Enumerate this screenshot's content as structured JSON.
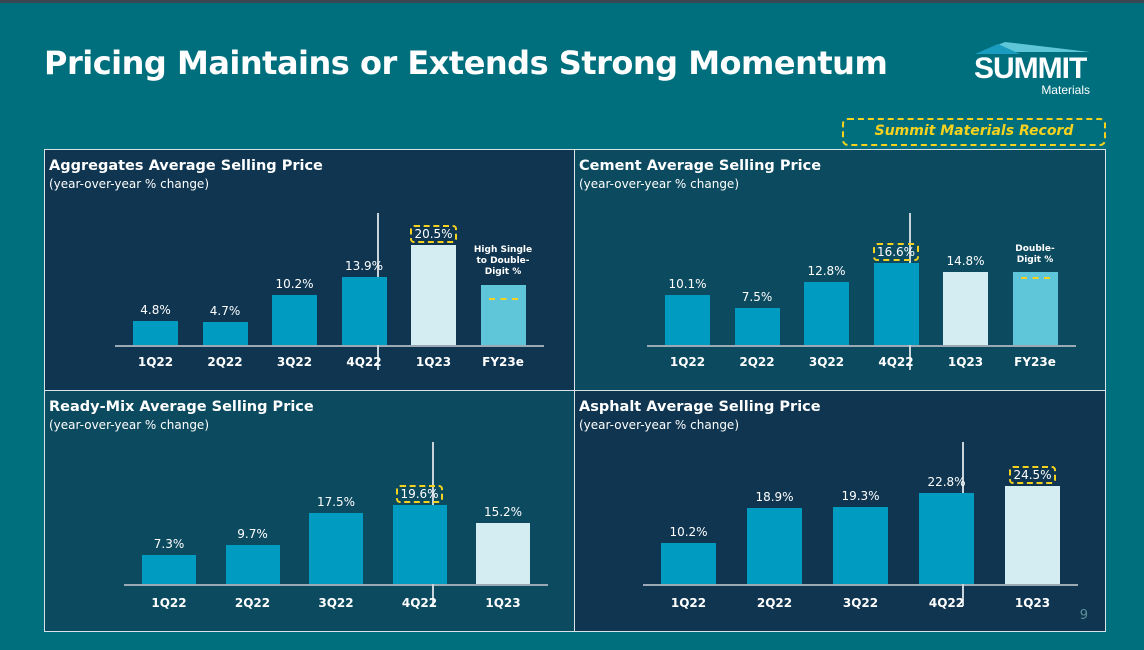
{
  "slide": {
    "title": "Pricing Maintains or Extends Strong Momentum",
    "page_number": "9",
    "record_legend": "Summit Materials Record"
  },
  "logo": {
    "brand": "SUMMIT",
    "sub": "Materials"
  },
  "colors": {
    "background": "#006f7d",
    "bar_2022": "#009bc0",
    "bar_1q23": "#d3edf3",
    "bar_fy23e": "#5ec6d8",
    "record_outline": "#f5d21e"
  },
  "chart_data": [
    {
      "type": "bar",
      "title": "Aggregates Average Selling Price",
      "subtitle": "(year-over-year % change)",
      "categories": [
        "1Q22",
        "2Q22",
        "3Q22",
        "4Q22",
        "1Q23",
        "FY23e"
      ],
      "values": [
        4.8,
        4.7,
        10.2,
        13.9,
        20.5,
        null
      ],
      "labels": [
        "4.8%",
        "4.7%",
        "10.2%",
        "13.9%",
        "20.5%",
        ""
      ],
      "record": "1Q23",
      "fy23e_note": "High Single to Double-Digit %"
    },
    {
      "type": "bar",
      "title": "Cement Average Selling Price",
      "subtitle": "(year-over-year % change)",
      "categories": [
        "1Q22",
        "2Q22",
        "3Q22",
        "4Q22",
        "1Q23",
        "FY23e"
      ],
      "values": [
        10.1,
        7.5,
        12.8,
        16.6,
        14.8,
        null
      ],
      "labels": [
        "10.1%",
        "7.5%",
        "12.8%",
        "16.6%",
        "14.8%",
        ""
      ],
      "record": "4Q22",
      "fy23e_note": "Double-Digit %"
    },
    {
      "type": "bar",
      "title": "Ready-Mix Average Selling Price",
      "subtitle": "(year-over-year % change)",
      "categories": [
        "1Q22",
        "2Q22",
        "3Q22",
        "4Q22",
        "1Q23"
      ],
      "values": [
        7.3,
        9.7,
        17.5,
        19.6,
        15.2
      ],
      "labels": [
        "7.3%",
        "9.7%",
        "17.5%",
        "19.6%",
        "15.2%"
      ],
      "record": "4Q22"
    },
    {
      "type": "bar",
      "title": "Asphalt Average Selling Price",
      "subtitle": "(year-over-year % change)",
      "categories": [
        "1Q22",
        "2Q22",
        "3Q22",
        "4Q22",
        "1Q23"
      ],
      "values": [
        10.2,
        18.9,
        19.3,
        22.8,
        24.5
      ],
      "labels": [
        "10.2%",
        "18.9%",
        "19.3%",
        "22.8%",
        "24.5%"
      ],
      "record": "1Q23"
    }
  ]
}
